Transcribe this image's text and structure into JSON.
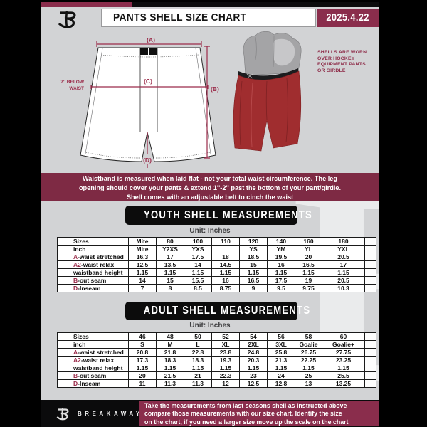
{
  "colors": {
    "page_bg": "#d2d3d5",
    "maroon": "#7e2a44",
    "maroon_bright": "#8a2d4c",
    "accent": "#9b2b4a",
    "caption": "#8e2b48",
    "shell_red": "#a02d2f"
  },
  "header": {
    "title": "PANTS SHELL SIZE CHART",
    "date": "2025.4.22"
  },
  "diagram": {
    "label_a": "(A)",
    "label_b": "(B)",
    "label_c": "(C)",
    "label_d": "(D)",
    "waist_note": [
      "7'' BELOW",
      "WAIST"
    ]
  },
  "photo": {
    "caption_lines": [
      "SHELLS ARE WORN",
      "OVER HOCKEY",
      "EQUIPMENT PANTS",
      "OR GIRDLE"
    ]
  },
  "notice": {
    "lines": [
      "Waistband is measured when laid flat - not your total waist circumference. The leg",
      "opening should cover your pants & extend 1''-2'' past the bottom of your pant/girdle.",
      "Shell comes with an adjustable belt to cinch the waist"
    ]
  },
  "youth": {
    "banner": "YOUTH SHELL MEASUREMENTS",
    "unit_label": "Unit: Inches",
    "table": {
      "rows": [
        {
          "prefix": "",
          "label": "Sizes",
          "values": [
            "Mite",
            "80",
            "100",
            "110",
            "120",
            "140",
            "160",
            "180"
          ]
        },
        {
          "prefix": "",
          "label": "inch",
          "values": [
            "Mite",
            "Y2XS",
            "YXS",
            "",
            "YS",
            "YM",
            "YL",
            "YXL"
          ]
        },
        {
          "prefix": "A",
          "label": "-waist stretched",
          "values": [
            "16.3",
            "17",
            "17.5",
            "18",
            "18.5",
            "19.5",
            "20",
            "20.5"
          ]
        },
        {
          "prefix": "A2",
          "label": "-waist relax",
          "values": [
            "12.5",
            "13.5",
            "14",
            "14.5",
            "15",
            "16",
            "16.5",
            "17"
          ]
        },
        {
          "prefix": "",
          "label": "waistband height",
          "values": [
            "1.15",
            "1.15",
            "1.15",
            "1.15",
            "1.15",
            "1.15",
            "1.15",
            "1.15"
          ]
        },
        {
          "prefix": "B",
          "label": "-out seam",
          "values": [
            "14",
            "15",
            "15.5",
            "16",
            "16.5",
            "17.5",
            "19",
            "20.5"
          ]
        },
        {
          "prefix": "D",
          "label": "-Inseam",
          "values": [
            "7",
            "8",
            "8.5",
            "8.75",
            "9",
            "9.5",
            "9.75",
            "10.3"
          ]
        }
      ]
    }
  },
  "adult": {
    "banner": "ADULT SHELL MEASUREMENTS",
    "unit_label": "Unit: Inches",
    "table": {
      "rows": [
        {
          "prefix": "",
          "label": "Sizes",
          "values": [
            "46",
            "48",
            "50",
            "52",
            "54",
            "56",
            "58",
            "60"
          ]
        },
        {
          "prefix": "",
          "label": "inch",
          "values": [
            "S",
            "M",
            "L",
            "XL",
            "2XL",
            "3XL",
            "Goalie",
            "Goalie+"
          ]
        },
        {
          "prefix": "A",
          "label": "-waist stretched",
          "values": [
            "20.8",
            "21.8",
            "22.8",
            "23.8",
            "24.8",
            "25.8",
            "26.75",
            "27.75"
          ]
        },
        {
          "prefix": "A2",
          "label": "-waist relax",
          "values": [
            "17.3",
            "18.3",
            "18.3",
            "19.3",
            "20.3",
            "21.3",
            "22.25",
            "23.25"
          ]
        },
        {
          "prefix": "",
          "label": "waistband height",
          "values": [
            "1.15",
            "1.15",
            "1.15",
            "1.15",
            "1.15",
            "1.15",
            "1.15",
            "1.15"
          ]
        },
        {
          "prefix": "B",
          "label": "-out seam",
          "values": [
            "20",
            "21.5",
            "21",
            "22.3",
            "23",
            "24",
            "25",
            "25.5"
          ]
        },
        {
          "prefix": "D",
          "label": "-Inseam",
          "values": [
            "11",
            "11.3",
            "11.3",
            "12",
            "12.5",
            "12.8",
            "13",
            "13.25"
          ]
        }
      ]
    }
  },
  "footer": {
    "brand": "BREAKAWAY",
    "note_lines": [
      "Take the measurements from last seasons shell as instructed above",
      "compare those measurements  with our size chart. Identify the size",
      "on the chart, if you need a larger size move up the scale on the chart"
    ]
  }
}
